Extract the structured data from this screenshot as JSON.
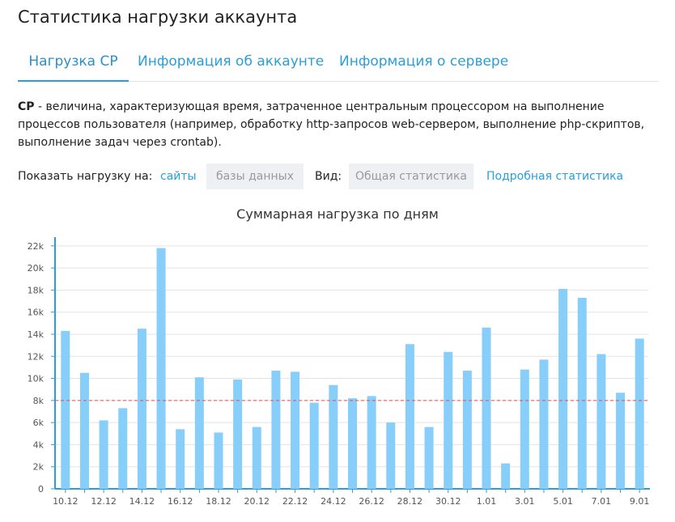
{
  "page": {
    "title": "Статистика нагрузки аккаунта"
  },
  "tabs": [
    {
      "label": "Нагрузка CP",
      "active": true
    },
    {
      "label": "Информация об аккаунте",
      "active": false
    },
    {
      "label": "Информация о сервере",
      "active": false
    }
  ],
  "description": {
    "term": "CP",
    "text": " - величина, характеризующая время, затраченное центральным процессором на выполнение процессов пользователя (например, обработку http-запросов web-сервером, выполнение php-скриптов, выполнение задач через crontab)."
  },
  "filters": {
    "load_label": "Показать нагрузку на:",
    "sites": "сайты",
    "databases": "базы данных",
    "view_label": "Вид:",
    "general": "Общая статистика",
    "detailed": "Подробная статистика"
  },
  "colors": {
    "accent": "#2a9ed8",
    "bar": "#87cefa",
    "threshold": "#d9534f"
  },
  "chart_data": {
    "type": "bar",
    "title": "Суммарная нагрузка по дням",
    "categories": [
      "10.12",
      "11.12",
      "12.12",
      "13.12",
      "14.12",
      "15.12",
      "16.12",
      "17.12",
      "18.12",
      "19.12",
      "20.12",
      "21.12",
      "22.12",
      "23.12",
      "24.12",
      "25.12",
      "26.12",
      "27.12",
      "28.12",
      "29.12",
      "30.12",
      "31.12",
      "1.01",
      "2.01",
      "3.01",
      "4.01",
      "5.01",
      "6.01",
      "7.01",
      "8.01",
      "9.01"
    ],
    "values": [
      14300,
      10500,
      6200,
      7300,
      14500,
      21800,
      5400,
      10100,
      5100,
      9900,
      5600,
      10700,
      10600,
      7800,
      9400,
      8200,
      8400,
      6000,
      13100,
      5600,
      12400,
      10700,
      14600,
      2300,
      10800,
      11700,
      18100,
      17300,
      12200,
      8700,
      13600
    ],
    "x_tick_labels": [
      "10.12",
      "12.12",
      "14.12",
      "16.12",
      "18.12",
      "20.12",
      "22.12",
      "24.12",
      "26.12",
      "28.12",
      "30.12",
      "1.01",
      "3.01",
      "5.01",
      "7.01",
      "9.01"
    ],
    "y_ticks": [
      0,
      2000,
      4000,
      6000,
      8000,
      10000,
      12000,
      14000,
      16000,
      18000,
      20000,
      22000
    ],
    "y_tick_labels": [
      "0",
      "2k",
      "4k",
      "6k",
      "8k",
      "10k",
      "12k",
      "14k",
      "16k",
      "18k",
      "20k",
      "22k"
    ],
    "ylim": [
      0,
      22500
    ],
    "threshold": 8000,
    "grid": true,
    "xlabel": "",
    "ylabel": ""
  }
}
